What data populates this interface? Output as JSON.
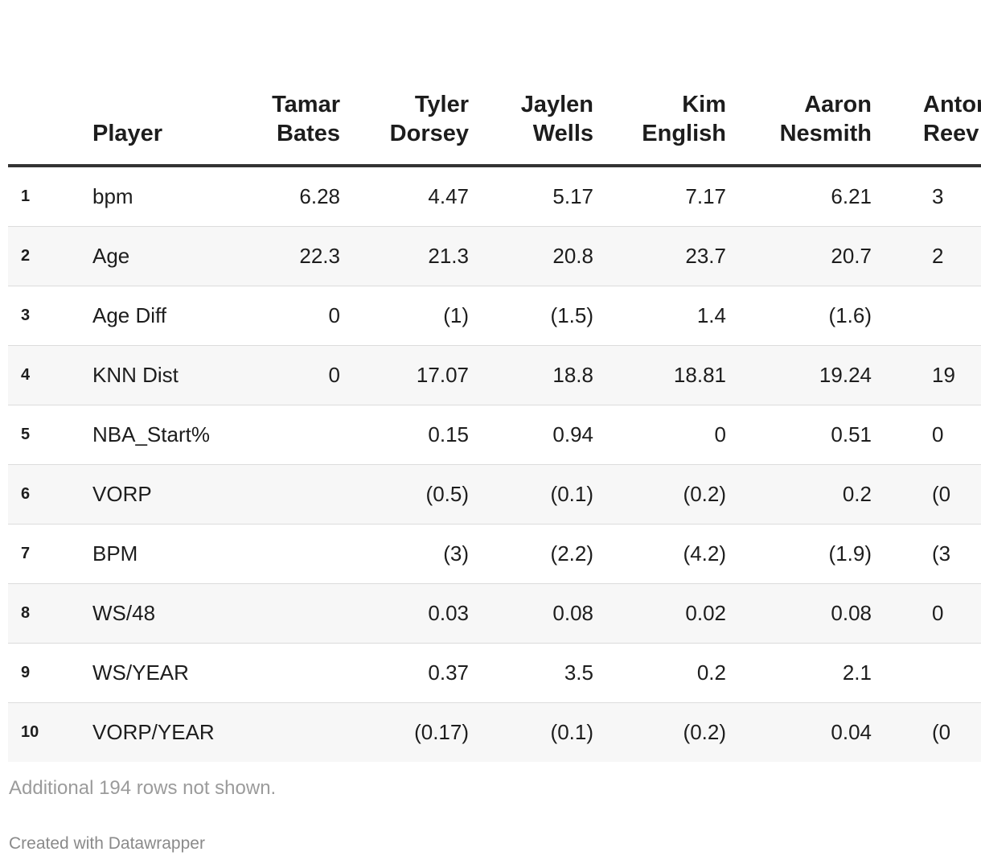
{
  "table": {
    "columns": [
      {
        "key": "num",
        "label": ""
      },
      {
        "key": "player",
        "label": "Player"
      },
      {
        "key": "c1",
        "label": "Tamar Bates"
      },
      {
        "key": "c2",
        "label": "Tyler Dorsey"
      },
      {
        "key": "c3",
        "label": "Jaylen Wells"
      },
      {
        "key": "c4",
        "label": "Kim English"
      },
      {
        "key": "c5",
        "label": "Aaron Nesmith"
      },
      {
        "key": "c6",
        "label": "Antor Reev"
      }
    ],
    "rows": [
      [
        "1",
        "bpm",
        "6.28",
        "4.47",
        "5.17",
        "7.17",
        "6.21",
        "3"
      ],
      [
        "2",
        "Age",
        "22.3",
        "21.3",
        "20.8",
        "23.7",
        "20.7",
        "2"
      ],
      [
        "3",
        "Age Diff",
        "0",
        "(1)",
        "(1.5)",
        "1.4",
        "(1.6)",
        ""
      ],
      [
        "4",
        "KNN Dist",
        "0",
        "17.07",
        "18.8",
        "18.81",
        "19.24",
        "19"
      ],
      [
        "5",
        "NBA_Start%",
        "",
        "0.15",
        "0.94",
        "0",
        "0.51",
        "0"
      ],
      [
        "6",
        "VORP",
        "",
        "(0.5)",
        "(0.1)",
        "(0.2)",
        "0.2",
        "(0"
      ],
      [
        "7",
        "BPM",
        "",
        "(3)",
        "(2.2)",
        "(4.2)",
        "(1.9)",
        "(3"
      ],
      [
        "8",
        "WS/48",
        "",
        "0.03",
        "0.08",
        "0.02",
        "0.08",
        "0"
      ],
      [
        "9",
        "WS/YEAR",
        "",
        "0.37",
        "3.5",
        "0.2",
        "2.1",
        ""
      ],
      [
        "10",
        "VORP/YEAR",
        "",
        "(0.17)",
        "(0.1)",
        "(0.2)",
        "0.04",
        "(0"
      ]
    ]
  },
  "footnote": "Additional 194 rows not shown.",
  "credit": "Created with Datawrapper"
}
